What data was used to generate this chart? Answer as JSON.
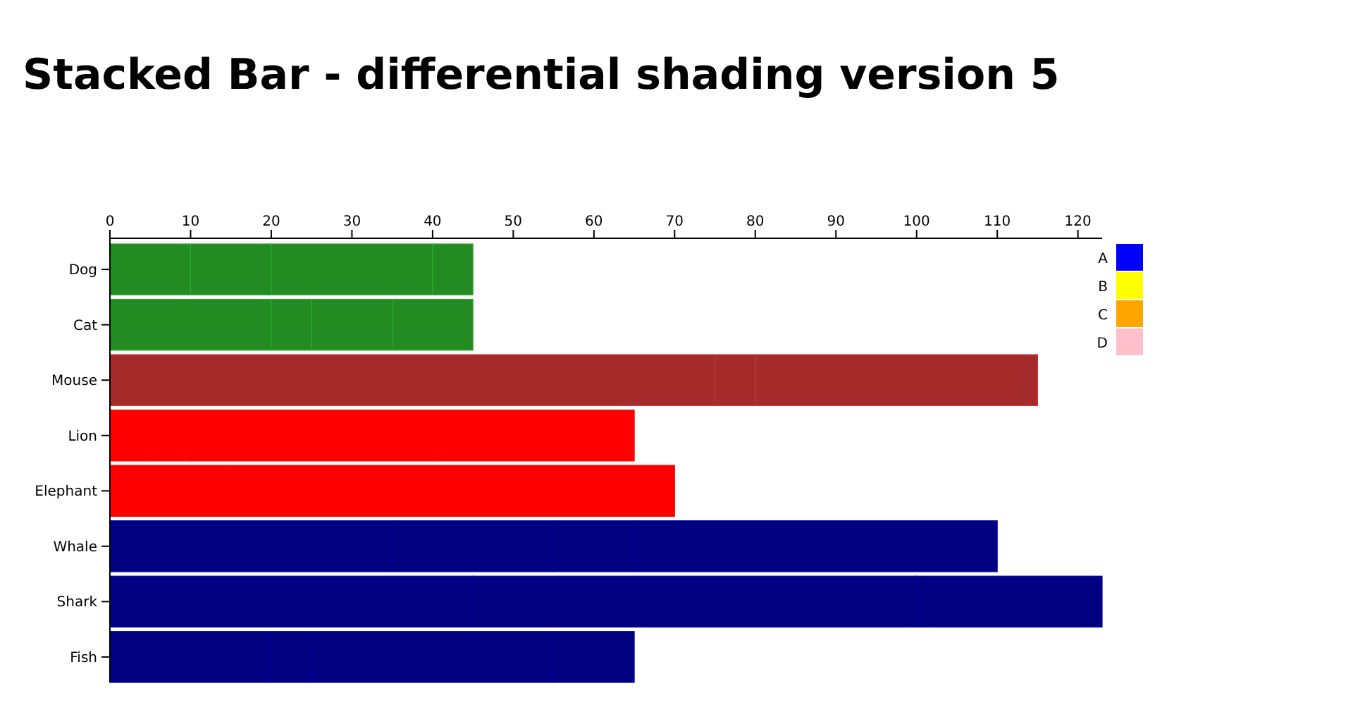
{
  "chart_data": {
    "type": "bar",
    "title": "Stacked Bar - differential shading version 5",
    "orientation": "horizontal",
    "stacked": true,
    "categories": [
      "Dog",
      "Cat",
      "Mouse",
      "Lion",
      "Elephant",
      "Whale",
      "Shark",
      "Fish"
    ],
    "series": [
      {
        "name": "A",
        "color": "#0000ff",
        "colors": [
          "#228b22",
          "#228b22",
          "#a52a2a",
          "#ff0000",
          "#ff0000",
          "#000080",
          "#000080",
          "#000080"
        ],
        "values": [
          10,
          20,
          75,
          5,
          15,
          35,
          45,
          20
        ]
      },
      {
        "name": "B",
        "color": "#ffff00",
        "colors": [
          "#228b22",
          "#228b22",
          "#a52a2a",
          "#ff0000",
          "#ff0000",
          "#000080",
          "#000080",
          "#000080"
        ],
        "values": [
          10,
          5,
          5,
          5,
          35,
          20,
          55,
          5
        ]
      },
      {
        "name": "C",
        "color": "#ffa500",
        "colors": [
          "#228b22",
          "#228b22",
          "#a52a2a",
          "#ff0000",
          "#ff0000",
          "#000080",
          "#000080",
          "#000080"
        ],
        "values": [
          20,
          10,
          35,
          30,
          20,
          10,
          23,
          30
        ]
      },
      {
        "name": "D",
        "color": "#ffc0cb",
        "colors": [
          "#228b22",
          "#228b22",
          "#a52a2a",
          "#ff0000",
          "#ff0000",
          "#000080",
          "#000080",
          "#000080"
        ],
        "values": [
          5,
          10,
          0,
          25,
          0,
          45,
          0,
          10
        ]
      }
    ],
    "xlim": [
      0,
      123
    ],
    "xticks": [
      0,
      10,
      20,
      30,
      40,
      50,
      60,
      70,
      80,
      90,
      100,
      110,
      120
    ],
    "legend": "top right"
  }
}
